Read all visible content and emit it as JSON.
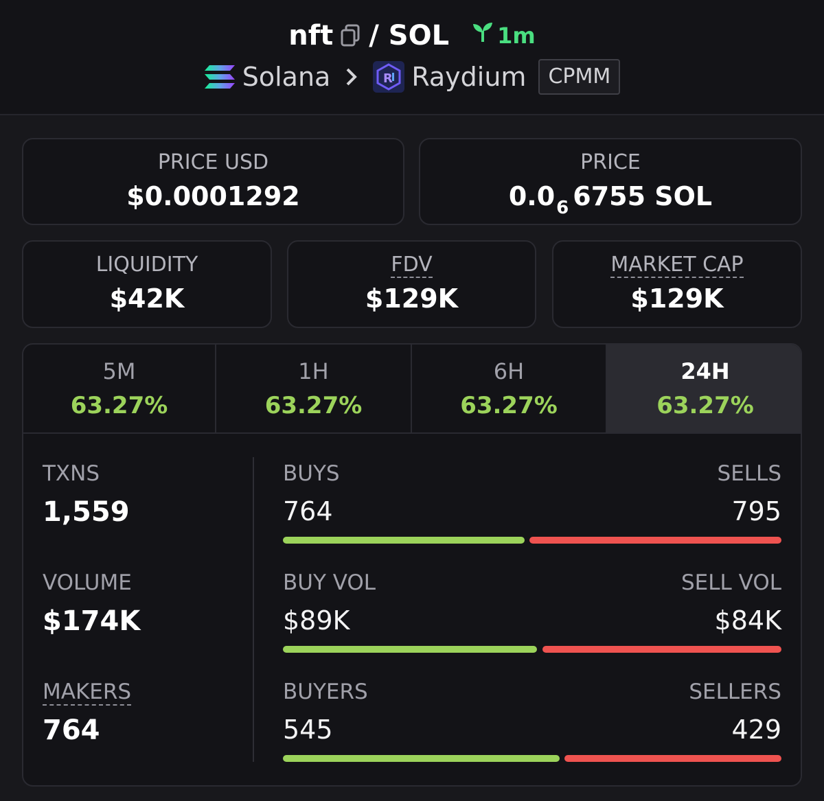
{
  "header": {
    "token": "nft",
    "quote": "/ SOL",
    "age": "1m",
    "chain": "Solana",
    "dex": "Raydium",
    "pool_type": "CPMM"
  },
  "prices": {
    "usd_label": "PRICE USD",
    "usd_value": "$0.0001292",
    "native_label": "PRICE",
    "native_prefix": "0.0",
    "native_zeros": "6",
    "native_suffix": "6755 SOL"
  },
  "metrics": {
    "liquidity_label": "LIQUIDITY",
    "liquidity_value": "$42K",
    "fdv_label": "FDV",
    "fdv_value": "$129K",
    "mcap_label": "MARKET CAP",
    "mcap_value": "$129K"
  },
  "tabs": [
    {
      "label": "5M",
      "change": "63.27%",
      "active": false
    },
    {
      "label": "1H",
      "change": "63.27%",
      "active": false
    },
    {
      "label": "6H",
      "change": "63.27%",
      "active": false
    },
    {
      "label": "24H",
      "change": "63.27%",
      "active": true
    }
  ],
  "stats": {
    "txns_label": "TXNS",
    "txns_value": "1,559",
    "volume_label": "VOLUME",
    "volume_value": "$174K",
    "makers_label": "MAKERS",
    "makers_value": "764",
    "rows": [
      {
        "left_label": "BUYS",
        "left_value": "764",
        "right_label": "SELLS",
        "right_value": "795",
        "buy_share": 0.49
      },
      {
        "left_label": "BUY VOL",
        "left_value": "$89K",
        "right_label": "SELL VOL",
        "right_value": "$84K",
        "buy_share": 0.515
      },
      {
        "left_label": "BUYERS",
        "left_value": "545",
        "right_label": "SELLERS",
        "right_value": "429",
        "buy_share": 0.56
      }
    ]
  },
  "colors": {
    "positive": "#9cd35b",
    "negative": "#ef5350",
    "age_green": "#4ade80",
    "background": "#18181c"
  },
  "icons": [
    "copy-icon",
    "sprout-icon",
    "solana-logo-icon",
    "chevron-right-icon",
    "raydium-logo-icon"
  ]
}
